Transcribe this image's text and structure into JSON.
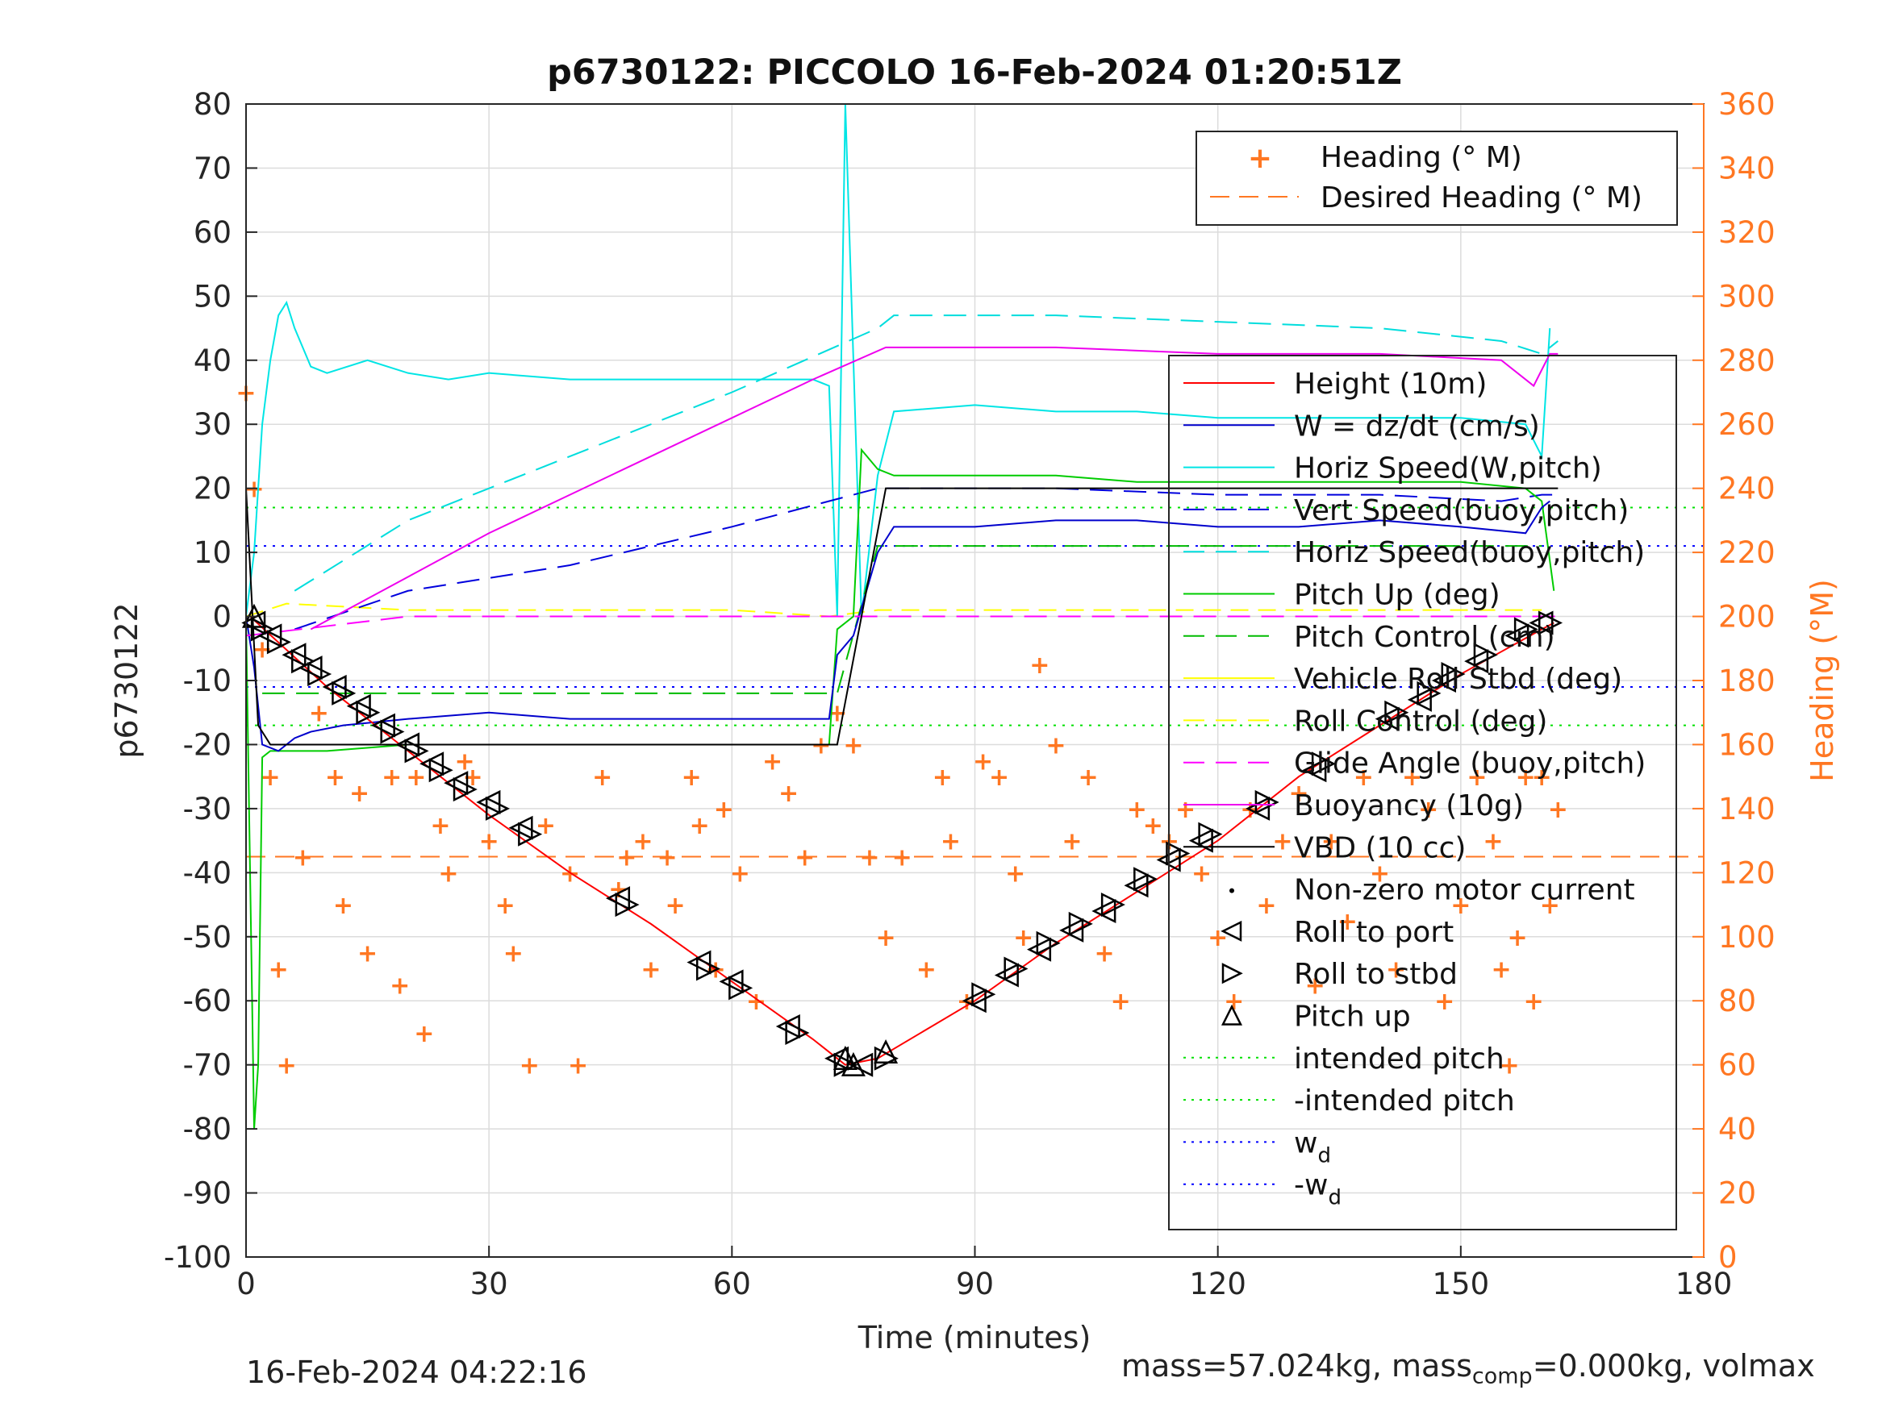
{
  "chart_data": {
    "type": "line",
    "title": "p6730122: PICCOLO 16-Feb-2024 01:20:51Z",
    "xlabel": "Time (minutes)",
    "ylabel": "p6730122",
    "ylabel_right": "Heading (°M)",
    "xlim": [
      0,
      180
    ],
    "ylim": [
      -100,
      80
    ],
    "ylim_right": [
      0,
      360
    ],
    "x_ticks": [
      "0",
      "30",
      "60",
      "90",
      "120",
      "150",
      "180"
    ],
    "y_ticks": [
      "80",
      "70",
      "60",
      "50",
      "40",
      "30",
      "20",
      "10",
      "0",
      "-10",
      "-20",
      "-30",
      "-40",
      "-50",
      "-60",
      "-70",
      "-80",
      "-90",
      "-100"
    ],
    "y_ticks_right": [
      "360",
      "340",
      "320",
      "300",
      "280",
      "260",
      "240",
      "220",
      "200",
      "180",
      "160",
      "140",
      "120",
      "100",
      "80",
      "60",
      "40",
      "20",
      "0"
    ],
    "grid": true,
    "colors": {
      "height": "#ff0000",
      "w": "#0000cc",
      "horiz_speed_wp": "#00e5e5",
      "vert_speed_bp": "#0000dd",
      "horiz_speed_bp": "#00dddd",
      "pitch_up": "#00cc00",
      "pitch_control": "#00bb00",
      "roll": "#ffff00",
      "roll_control": "#ffff00",
      "glide_angle": "#ff00ff",
      "buoyancy": "#ee00ee",
      "vbd": "#000000",
      "heading": "#ff7722",
      "intended_pitch": "#00e000",
      "wd": "#0000ff",
      "right_axis": "#ff7722"
    },
    "legend_heading": [
      {
        "label": "Heading (° M)",
        "marker": "plus"
      },
      {
        "label": "Desired Heading (° M)",
        "line": "dashed"
      }
    ],
    "legend_main": [
      {
        "label": "Height (10m)",
        "style": "solid"
      },
      {
        "label": "W = dz/dt (cm/s)",
        "style": "solid"
      },
      {
        "label": "Horiz Speed(W,pitch)",
        "style": "solid"
      },
      {
        "label": "Vert Speed(buoy,pitch)",
        "style": "dashed"
      },
      {
        "label": "Horiz Speed(buoy,pitch)",
        "style": "dashed"
      },
      {
        "label": "Pitch Up (deg)",
        "style": "solid"
      },
      {
        "label": "Pitch Control (cm)",
        "style": "dashed"
      },
      {
        "label": "Vehicle Roll Stbd (deg)",
        "style": "solid"
      },
      {
        "label": "Roll Control (deg)",
        "style": "dashed"
      },
      {
        "label": "Glide Angle (buoy,pitch)",
        "style": "dashed"
      },
      {
        "label": "Buoyancy (10g)",
        "style": "solid"
      },
      {
        "label": "VBD (10 cc)",
        "style": "solid"
      },
      {
        "label": "Non-zero motor current",
        "style": "dot"
      },
      {
        "label": "Roll to port",
        "style": "tri-left"
      },
      {
        "label": "Roll to stbd",
        "style": "tri-right"
      },
      {
        "label": "Pitch up",
        "style": "tri-up"
      },
      {
        "label": "intended pitch",
        "style": "dotted"
      },
      {
        "label": "-intended pitch",
        "style": "dotted"
      },
      {
        "label": "w",
        "sub": "d",
        "style": "dotted"
      },
      {
        "label": "-w",
        "sub": "d",
        "style": "dotted"
      }
    ],
    "series": {
      "height": {
        "x": [
          0.5,
          10,
          20,
          30,
          40,
          50,
          60,
          70,
          74,
          78,
          90,
          100,
          110,
          120,
          130,
          140,
          150,
          160,
          161.5
        ],
        "y": [
          0,
          -11,
          -21,
          -31,
          -40,
          -48,
          -57,
          -66,
          -70,
          -69,
          -60,
          -51,
          -43,
          -35,
          -25,
          -17,
          -9,
          -2,
          -1
        ]
      },
      "w": {
        "x": [
          0,
          1,
          2,
          4,
          6,
          8,
          12,
          20,
          30,
          40,
          50,
          60,
          72,
          73,
          75,
          78,
          80,
          90,
          100,
          110,
          120,
          130,
          140,
          150,
          158,
          160,
          161
        ],
        "y": [
          0,
          -8,
          -20,
          -21,
          -19,
          -18,
          -17,
          -16,
          -15,
          -16,
          -16,
          -16,
          -16,
          -6,
          -3,
          10,
          14,
          14,
          15,
          15,
          14,
          14,
          15,
          14,
          13,
          17,
          18
        ]
      },
      "horiz_speed_wp": {
        "x": [
          0,
          1,
          2,
          3,
          4,
          5,
          6,
          8,
          10,
          15,
          20,
          25,
          30,
          40,
          50,
          60,
          70,
          72,
          73,
          74,
          76,
          78,
          80,
          90,
          100,
          110,
          120,
          130,
          140,
          150,
          158,
          160,
          161
        ],
        "y": [
          0,
          10,
          30,
          40,
          47,
          49,
          45,
          39,
          38,
          40,
          38,
          37,
          38,
          37,
          37,
          37,
          37,
          36,
          0,
          80,
          0,
          22,
          32,
          33,
          32,
          32,
          31,
          31,
          31,
          31,
          30,
          25,
          45
        ]
      },
      "vert_speed_bp": {
        "x": [
          6,
          20,
          40,
          60,
          78,
          100,
          120,
          140,
          155,
          160,
          162
        ],
        "y": [
          -2,
          4,
          8,
          14,
          20,
          20,
          19,
          19,
          18,
          19,
          19
        ]
      },
      "horiz_speed_bp": {
        "x": [
          6,
          20,
          40,
          60,
          78,
          80,
          100,
          120,
          140,
          155,
          160,
          162
        ],
        "y": [
          4,
          15,
          25,
          35,
          45,
          47,
          47,
          46,
          45,
          43,
          41,
          43
        ]
      },
      "pitch_up": {
        "x": [
          0,
          1,
          1.5,
          2,
          3,
          5,
          10,
          20,
          30,
          40,
          50,
          60,
          72,
          73,
          75,
          76,
          78,
          80,
          90,
          100,
          110,
          120,
          130,
          140,
          150,
          158,
          160,
          161.5
        ],
        "y": [
          0,
          -80,
          -70,
          -22,
          -21,
          -21,
          -21,
          -20,
          -20,
          -20,
          -20,
          -20,
          -20,
          -2,
          0,
          26,
          23,
          22,
          22,
          22,
          21,
          21,
          21,
          21,
          21,
          20,
          18,
          4
        ]
      },
      "pitch_control": {
        "x": [
          2,
          20,
          40,
          60,
          73,
          78,
          100,
          120,
          140,
          160
        ],
        "y": [
          -12,
          -12,
          -12,
          -12,
          -12,
          11,
          11,
          11,
          11,
          11
        ]
      },
      "roll_control": {
        "x": [
          0,
          5,
          20,
          40,
          60,
          72,
          78,
          100,
          120,
          140,
          160
        ],
        "y": [
          0,
          2,
          1,
          1,
          1,
          0,
          1,
          1,
          1,
          1,
          1
        ]
      },
      "glide_angle": {
        "x": [
          0,
          20,
          40,
          60,
          78,
          100,
          120,
          140,
          160,
          162
        ],
        "y": [
          -3,
          0,
          0,
          0,
          0,
          0,
          0,
          0,
          0,
          0
        ]
      },
      "buoyancy": {
        "x": [
          8,
          30,
          50,
          70,
          79,
          100,
          120,
          140,
          155,
          159,
          161,
          162
        ],
        "y": [
          -2,
          13,
          25,
          37,
          42,
          42,
          41,
          41,
          40,
          36,
          41,
          41
        ]
      },
      "vbd": {
        "x": [
          0,
          1.5,
          3,
          72,
          73,
          79,
          158,
          162
        ],
        "y": [
          20,
          -17,
          -20,
          -20,
          -20,
          20,
          20,
          20
        ]
      },
      "heading": {
        "x": [
          0,
          1,
          2,
          3,
          4,
          5,
          7,
          9,
          11,
          12,
          14,
          15,
          18,
          19,
          21,
          22,
          24,
          25,
          27,
          28,
          30,
          32,
          33,
          35,
          37,
          40,
          41,
          44,
          46,
          47,
          49,
          50,
          52,
          53,
          55,
          56,
          58,
          59,
          61,
          63,
          65,
          67,
          69,
          71,
          73,
          75,
          77,
          79,
          81,
          84,
          86,
          87,
          89,
          91,
          93,
          95,
          96,
          98,
          100,
          102,
          104,
          106,
          108,
          110,
          112,
          114,
          116,
          118,
          120,
          122,
          124,
          126,
          128,
          130,
          132,
          134,
          136,
          138,
          140,
          142,
          144,
          146,
          148,
          150,
          152,
          154,
          155,
          156,
          157,
          158,
          159,
          160,
          161,
          162
        ],
        "y": [
          270,
          240,
          190,
          150,
          90,
          60,
          125,
          170,
          150,
          110,
          145,
          95,
          150,
          85,
          150,
          70,
          135,
          120,
          155,
          150,
          130,
          110,
          95,
          60,
          135,
          120,
          60,
          150,
          115,
          125,
          130,
          90,
          125,
          110,
          150,
          135,
          90,
          140,
          120,
          80,
          155,
          145,
          125,
          160,
          170,
          160,
          125,
          100,
          125,
          90,
          150,
          130,
          80,
          155,
          150,
          120,
          100,
          185,
          160,
          130,
          150,
          95,
          80,
          140,
          135,
          130,
          140,
          120,
          100,
          80,
          140,
          110,
          130,
          145,
          85,
          130,
          105,
          150,
          120,
          90,
          150,
          140,
          80,
          110,
          150,
          130,
          90,
          60,
          100,
          150,
          80,
          150,
          110,
          140
        ]
      },
      "desired_heading": {
        "x": [
          0,
          180
        ],
        "y": [
          125,
          125
        ]
      },
      "intended_pitch": {
        "x": [
          0,
          180
        ],
        "y": [
          17,
          17
        ]
      },
      "neg_intended_pitch": {
        "x": [
          0,
          180
        ],
        "y": [
          -17,
          -17
        ]
      },
      "wd": {
        "x": [
          0,
          180
        ],
        "y": [
          11,
          11
        ]
      },
      "neg_wd": {
        "x": [
          0,
          180
        ],
        "y": [
          -11,
          -11
        ]
      }
    },
    "markers": {
      "roll_to_port": {
        "x": [
          1,
          3,
          6,
          8,
          11,
          14,
          17,
          20,
          23,
          26,
          30,
          34,
          46,
          56,
          60,
          67,
          73,
          76,
          90,
          94,
          98,
          102,
          106,
          110,
          114,
          118,
          125,
          132,
          141,
          145,
          148,
          152,
          157,
          160
        ],
        "y": [
          -1,
          -3,
          -6,
          -8,
          -11,
          -14,
          -17,
          -20,
          -23,
          -26,
          -29,
          -33,
          -44,
          -54,
          -57,
          -64,
          -69,
          -70,
          -60,
          -56,
          -52,
          -49,
          -46,
          -42,
          -38,
          -35,
          -30,
          -24,
          -16,
          -13,
          -10,
          -7,
          -3,
          -1
        ]
      },
      "roll_to_stbd": {
        "x": [
          2,
          4,
          7,
          9,
          12,
          15,
          18,
          21,
          24,
          27,
          31,
          35,
          47,
          57,
          61,
          68,
          74,
          79,
          91,
          95,
          99,
          103,
          107,
          111,
          115,
          119,
          126,
          133,
          142,
          146,
          149,
          153,
          158,
          161
        ],
        "y": [
          -2,
          -4,
          -7,
          -9,
          -12,
          -15,
          -18,
          -21,
          -24,
          -27,
          -30,
          -34,
          -45,
          -55,
          -58,
          -65,
          -70,
          -69,
          -59,
          -55,
          -51,
          -48,
          -45,
          -41,
          -37,
          -34,
          -29,
          -23,
          -15,
          -12,
          -9,
          -6,
          -2,
          -1
        ]
      },
      "pitch_up": {
        "x": [
          1,
          74,
          75,
          79
        ],
        "y": [
          0,
          -69,
          -70,
          -68
        ]
      }
    }
  },
  "footer": {
    "date": "16-Feb-2024 04:22:16",
    "mass_prefix": "mass=57.024kg, mass",
    "mass_sub": "comp",
    "mass_suffix": "=0.000kg, volmax"
  }
}
